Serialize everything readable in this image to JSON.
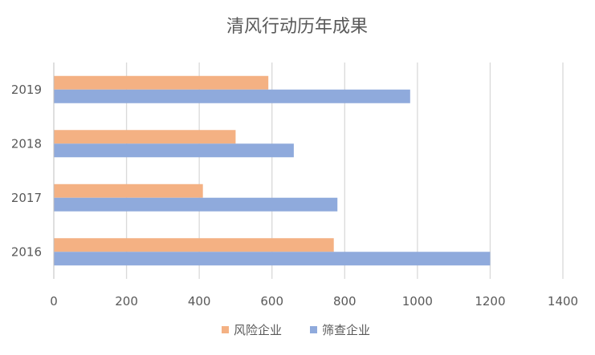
{
  "chart_data": {
    "type": "bar",
    "orientation": "horizontal",
    "title": "清风行动历年成果",
    "categories": [
      "2016",
      "2017",
      "2018",
      "2019"
    ],
    "series": [
      {
        "name": "风险企业",
        "color": "#f4b183",
        "values": [
          770,
          410,
          500,
          590
        ]
      },
      {
        "name": "筛查企业",
        "color": "#8faadc",
        "values": [
          1200,
          780,
          660,
          980
        ]
      }
    ],
    "xlim": [
      0,
      1400
    ],
    "xticks": [
      0,
      200,
      400,
      600,
      800,
      1000,
      1200,
      1400
    ],
    "grid": true,
    "legend_position": "bottom"
  }
}
